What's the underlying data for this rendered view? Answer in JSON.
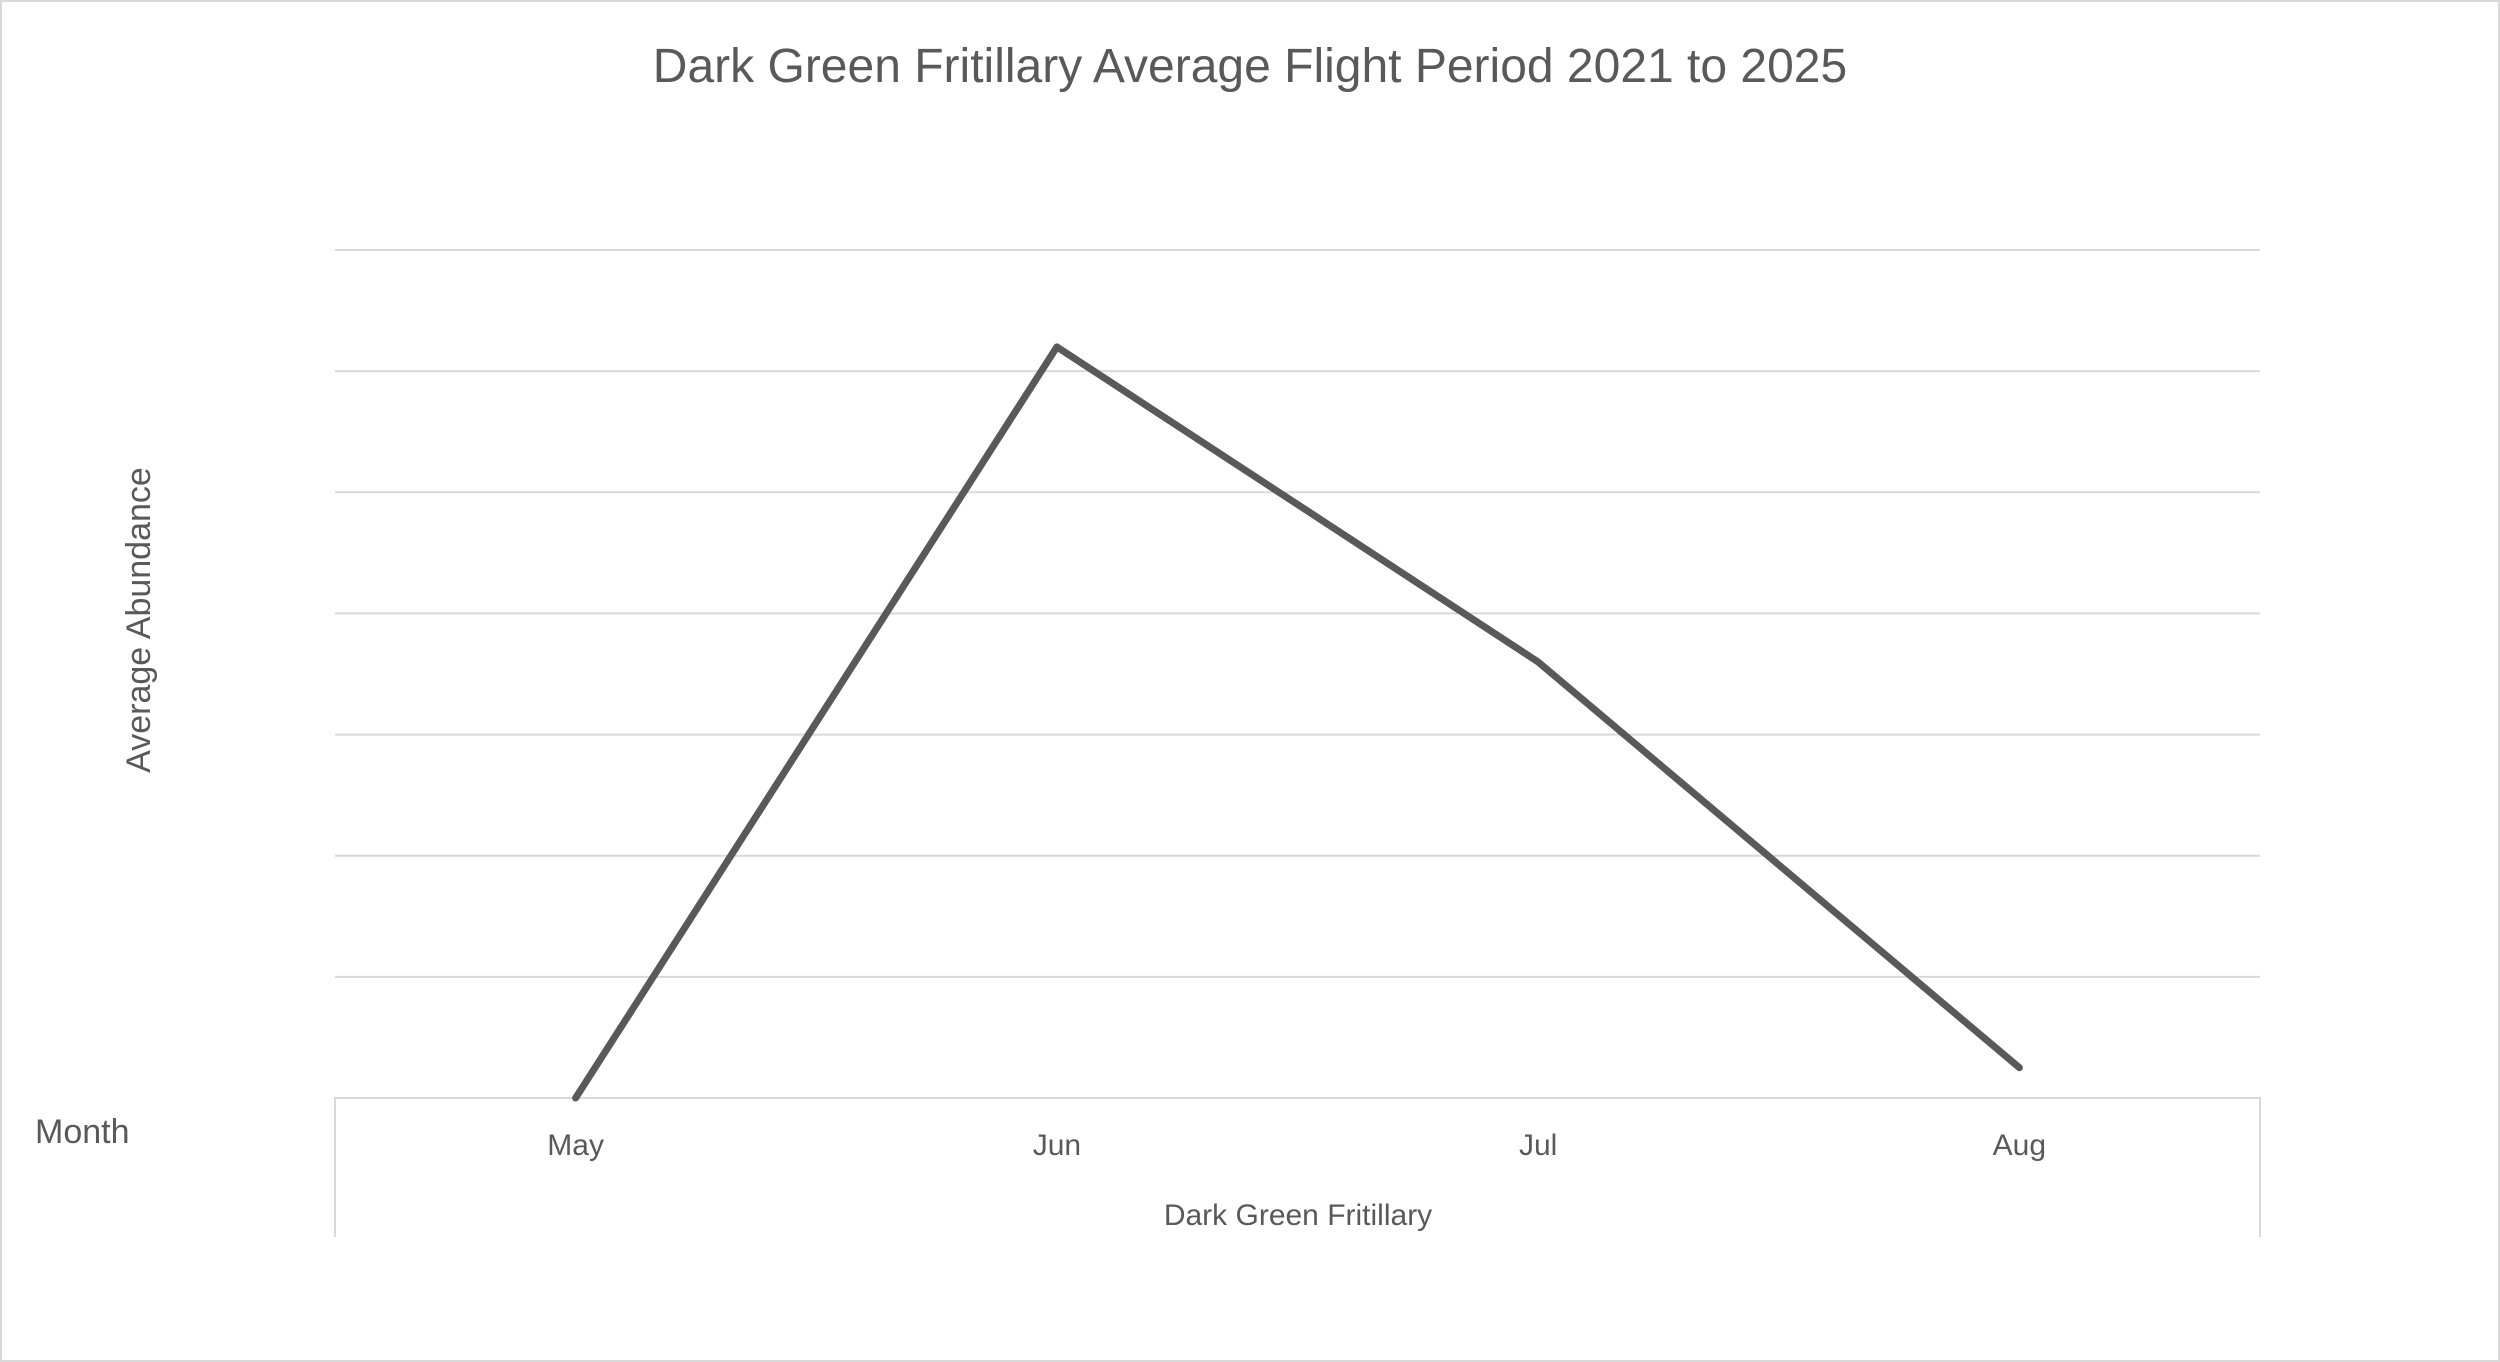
{
  "chart_data": {
    "type": "line",
    "title": "Dark Green Fritillary Average Flight Period 2021 to 2025",
    "ylabel": "Average Abundance",
    "xlabel": "Dark Green Fritillary",
    "field_button_label": "Month",
    "categories": [
      "May",
      "Jun",
      "Jul",
      "Aug"
    ],
    "series": [
      {
        "values": [
          0,
          6.2,
          3.6,
          0.25
        ]
      }
    ],
    "ylim": [
      0,
      7
    ],
    "y_tick_labels_shown": false,
    "grid": true,
    "legend": "none",
    "line_color": "#595959"
  }
}
